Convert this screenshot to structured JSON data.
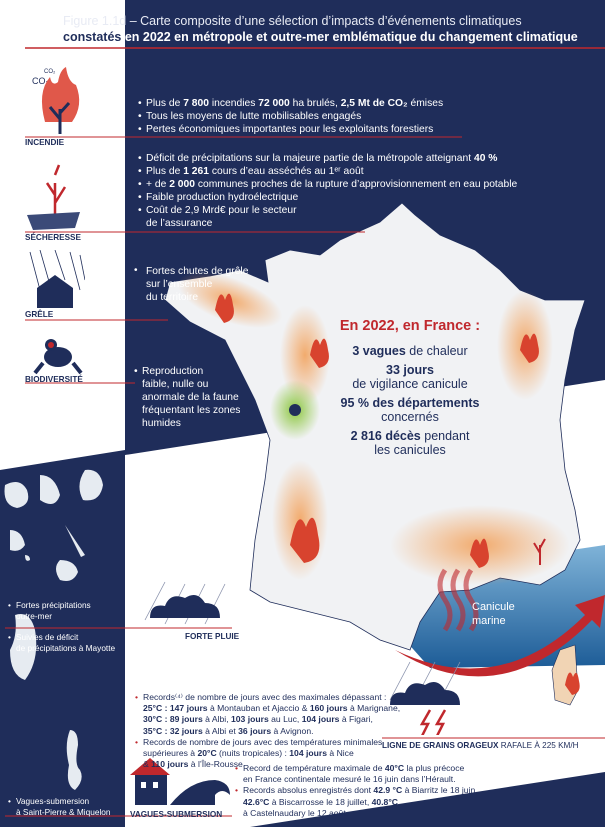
{
  "title": {
    "prefix": "Figure 1.1d",
    "line1": " – Carte composite d’une sélection d’impacts d’événements climatiques",
    "line2_lead": "constatés",
    "line2": " en 2022 en métropole et outre-mer emblématique du changement climatique"
  },
  "colors": {
    "navy": "#1f2d5a",
    "red": "#c0282d",
    "heat": "#f2a35e",
    "biodiversity": "#8cc63f",
    "sea": "#2a6fa8"
  },
  "categories": {
    "incendie": {
      "label": "INCENDIE",
      "icon": "burning-tree-icon",
      "co2": "CO₂",
      "items": [
        [
          "Plus de ",
          "7 800",
          " incendies  ",
          "72 000",
          " ha brulés, ",
          "2,5 Mt de CO₂",
          " émises"
        ],
        "Tous les moyens de lutte mobilisables engagés",
        "Pertes économiques importantes pour les exploitants forestiers"
      ]
    },
    "secheresse": {
      "label": "SÉCHERESSE",
      "icon": "dry-tree-icon",
      "items": [
        [
          "Déficit de précipitations sur la majeure partie de la métropole atteignant ",
          "40 %"
        ],
        [
          "Plus de ",
          "1 261",
          " cours d’eau asséchés au 1ᵉʳ août"
        ],
        [
          "+ de ",
          "2 000",
          " communes proches de la rupture d’approvisionnement en eau potable"
        ],
        "Faible production hydroélectrique",
        "Coût de 2,9 Mrd€ pour le secteur",
        "de l’assurance"
      ]
    },
    "grele": {
      "label": "GRÊLE",
      "icon": "hail-house-icon",
      "items": [
        "Fortes chutes de grêle",
        "sur l’ensemble",
        "du territoire"
      ]
    },
    "biodiversite": {
      "label": "BIODIVERSITÉ",
      "icon": "frog-icon",
      "items": [
        "Reproduction",
        "faible, nulle ou",
        "anormale de la faune",
        "fréquentant les zones",
        "humides"
      ]
    },
    "forte_pluie": {
      "label": "FORTE PLUIE",
      "icon": "rain-cloud-icon"
    },
    "grains": {
      "label_bold": "LIGNE DE GRAINS ORAGEUX",
      "label": " RAFALE À 225 KM/H",
      "icon": "storm-cloud-icon"
    },
    "vagues": {
      "label": "VAGUES-SUBMERSION",
      "icon": "flooded-house-icon"
    }
  },
  "outremer": {
    "items": [
      "Fortes précipitations",
      "outre-mer",
      "Suivies de déficit",
      "de précipitations à Mayotte",
      "Vagues-submersion",
      "à Saint-Pierre & Miquelon"
    ]
  },
  "stats": {
    "heading": "En 2022, en France :",
    "s1b": "3 vagues",
    "s1": " de chaleur",
    "s2b": "33 jours",
    "s2": "de vigilance canicule",
    "s3b": "95 % des départements",
    "s3": "concernés",
    "s4b": "2 816 décès",
    "s4": " pendant",
    "s4c": "les canicules"
  },
  "marine": {
    "line1": "Canicule",
    "line2": "marine"
  },
  "records1": {
    "l1": "Records⁽⁴⁾ de nombre de jours avec des maximales dépassant :",
    "l2b": "25°C : 147 jours",
    "l2": " à Montauban et Ajaccio  & ",
    "l2c": "160 jours",
    "l2d": " à Marignane,",
    "l3b": "30°C :  89 jours",
    "l3": " à Albi, ",
    "l3c": "103 jours",
    "l3d": " au Luc, ",
    "l3e": "104 jours",
    "l3f": " à Figari,",
    "l4b": "35°C : 32 jours",
    "l4": " à Albi et ",
    "l4c": "36 jours",
    "l4d": " à Avignon.",
    "l5": "Records de nombre de jours avec des températures minimales",
    "l6": "supérieures à ",
    "l6b": "20°C",
    "l6c": " (nuits tropicales) : ",
    "l6d": "104 jours",
    "l6e": " à Nice",
    "l7": "& ",
    "l7b": "110 jours",
    "l7c": " à l’Île-Rousse."
  },
  "records2": {
    "l1": "Record de température maximale de ",
    "l1b": "40°C",
    "l1c": " la plus précoce",
    "l2": "en France continentale mesuré le 16 juin dans l’Hérault.",
    "l3": "Records absolus enregistrés dont ",
    "l3b": "42.9 °C",
    "l3c": " à Biarritz le 18 juin,",
    "l4b": "42.6°C",
    "l4": " à Biscarrosse le 18 juillet, ",
    "l4c": "40.8°C",
    "l5": "à Castelnaudary le 12 août."
  }
}
